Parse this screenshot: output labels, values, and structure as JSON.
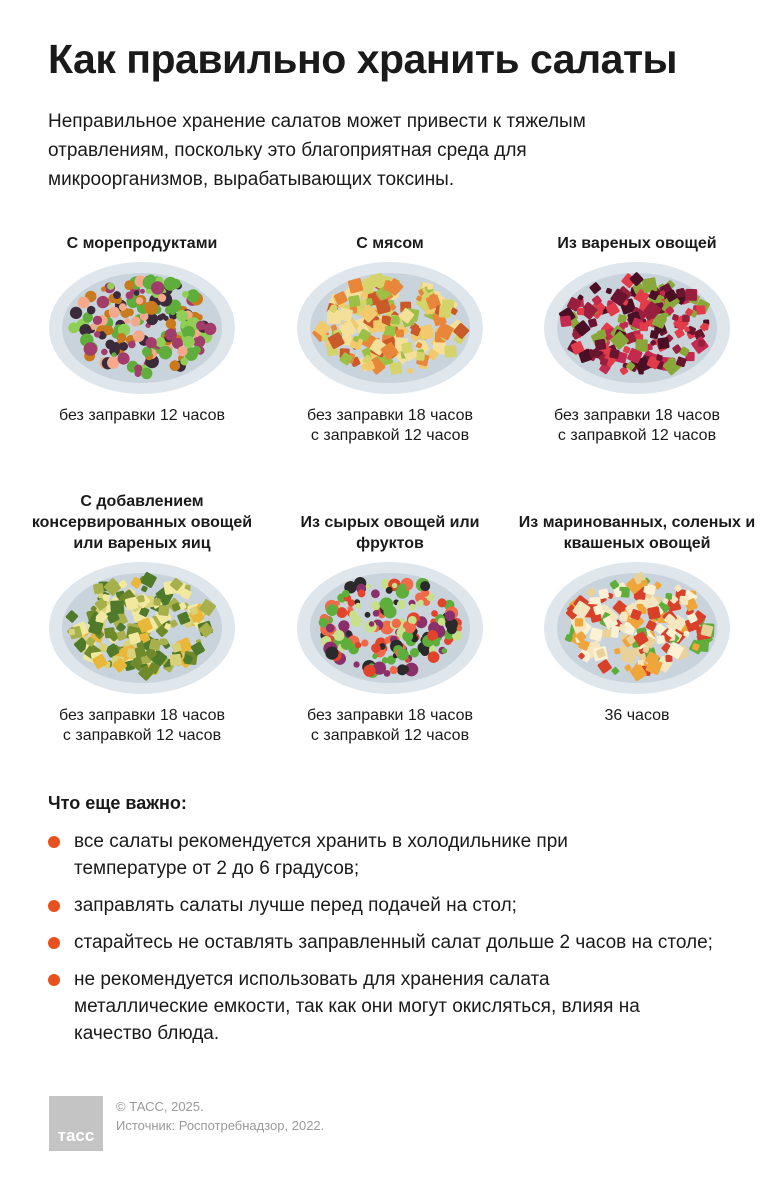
{
  "title": "Как правильно хранить салаты",
  "lead": "Неправильное хранение салатов может привести к тяжелым отравлениям, поскольку это благоприятная среда для микроорганизмов, вырабатывающих токсины.",
  "salads": [
    {
      "heading": "С морепродуктами",
      "storage": [
        "без заправки 12 часов"
      ],
      "colors": [
        "#5fae3c",
        "#8fcf55",
        "#f4a98a",
        "#c97a1c",
        "#3a2a3a",
        "#a23c6a"
      ]
    },
    {
      "heading": "С мясом",
      "storage": [
        "без заправки 18 часов",
        "с заправкой 12 часов"
      ],
      "colors": [
        "#f2c96b",
        "#e8873a",
        "#d4d46a",
        "#f5e09a",
        "#c95a2a",
        "#9cbf45"
      ]
    },
    {
      "heading": "Из вареных овощей",
      "storage": [
        "без заправки 18 часов",
        "с заправкой 12 часов"
      ],
      "colors": [
        "#6a1530",
        "#9a1f3c",
        "#e23b4a",
        "#4a0f24",
        "#8aa83a",
        "#c42a50"
      ]
    },
    {
      "heading": "С добавлением консервированных овощей или вареных яиц",
      "storage": [
        "без заправки 18 часов",
        "с заправкой 12 часов"
      ],
      "colors": [
        "#d8d27a",
        "#a7b04a",
        "#6e8a2a",
        "#f1e9a0",
        "#4f7a2a",
        "#e9b83a"
      ]
    },
    {
      "heading": "Из сырых овощей или фруктов",
      "storage": [
        "без заправки 18 часов",
        "с заправкой 12 часов"
      ],
      "colors": [
        "#e2432c",
        "#5eae3c",
        "#c8e08a",
        "#8a2f6a",
        "#2a2a2a",
        "#f06a4a"
      ]
    },
    {
      "heading": "Из маринованных, соленых и квашеных овощей",
      "storage": [
        "36 часов"
      ],
      "colors": [
        "#f5e6c0",
        "#f0a53a",
        "#e8d29a",
        "#d9402a",
        "#5fae3c",
        "#fbf1d5"
      ]
    }
  ],
  "important": {
    "heading": "Что еще важно:",
    "items": [
      "все салаты рекомендуется хранить в холодильнике при температуре от 2 до 6 градусов;",
      "заправлять салаты лучше перед подачей на стол;",
      "старайтесь не оставлять заправленный салат дольше 2 часов на столе;",
      "не рекомендуется использовать для хранения салата металлические емкости, так как они могут окисляться, влияя на качество блюда."
    ]
  },
  "footer": {
    "logo": "тасс",
    "copyright": "© ТАСС, 2025.",
    "source": "Источник:  Роспотребнадзор, 2022."
  },
  "accent": "#e8501e"
}
